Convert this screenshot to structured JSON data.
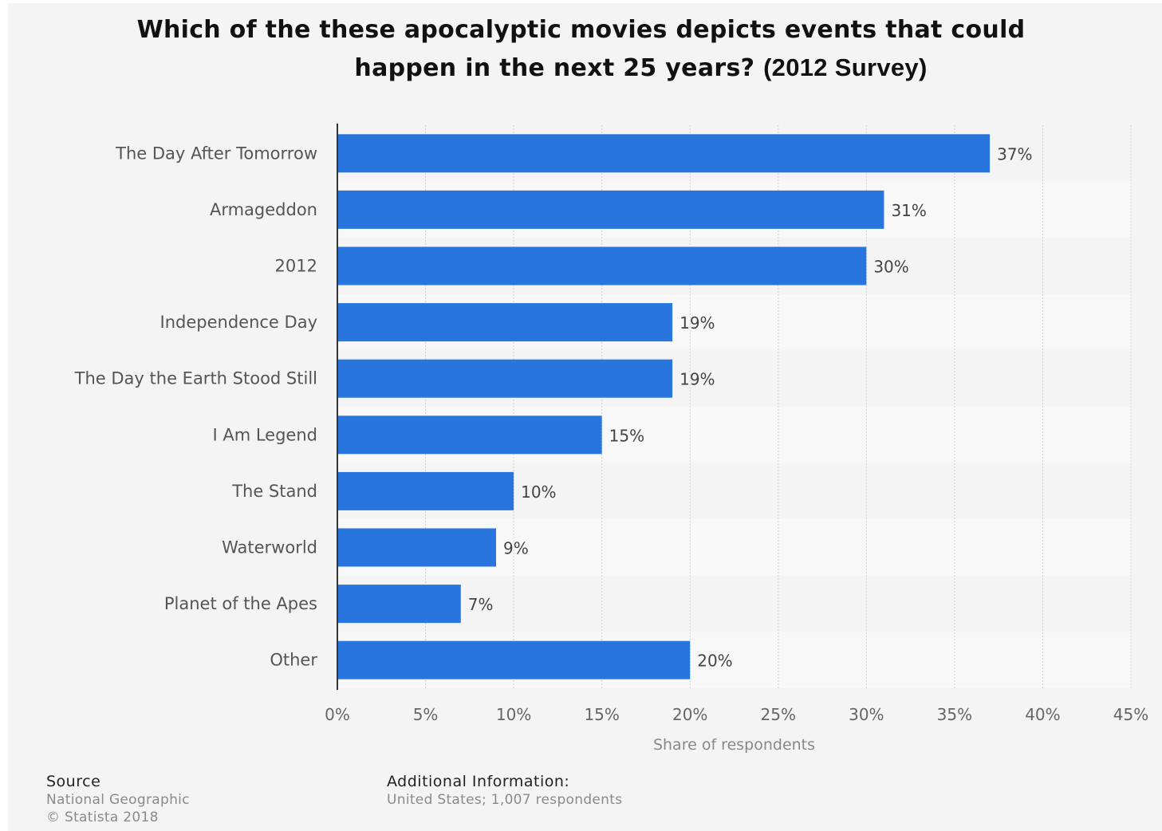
{
  "title": {
    "line1": "Which of the these apocalyptic movies depicts events that could",
    "line2": "happen in the next 25 years?",
    "suffix": "(2012 Survey)"
  },
  "chart_data": {
    "type": "bar",
    "orientation": "horizontal",
    "categories": [
      "The Day After Tomorrow",
      "Armageddon",
      "2012",
      "Independence Day",
      "The Day the Earth Stood Still",
      "I Am Legend",
      "The Stand",
      "Waterworld",
      "Planet of the Apes",
      "Other"
    ],
    "values": [
      37,
      31,
      30,
      19,
      19,
      15,
      10,
      9,
      7,
      20
    ],
    "data_labels": [
      "37%",
      "31%",
      "30%",
      "19%",
      "19%",
      "15%",
      "10%",
      "9%",
      "7%",
      "20%"
    ],
    "xlabel": "Share of respondents",
    "ylabel": "",
    "xlim": [
      0,
      45
    ],
    "xticks": [
      0,
      5,
      10,
      15,
      20,
      25,
      30,
      35,
      40,
      45
    ],
    "xtick_labels": [
      "0%",
      "5%",
      "10%",
      "15%",
      "20%",
      "25%",
      "30%",
      "35%",
      "40%",
      "45%"
    ],
    "grid": true,
    "bar_color": "#2876dd"
  },
  "footer": {
    "source_heading": "Source",
    "source_name": "National Geographic",
    "copyright": "© Statista 2018",
    "additional_heading": "Additional Information:",
    "additional_text": "United States; 1,007 respondents"
  }
}
